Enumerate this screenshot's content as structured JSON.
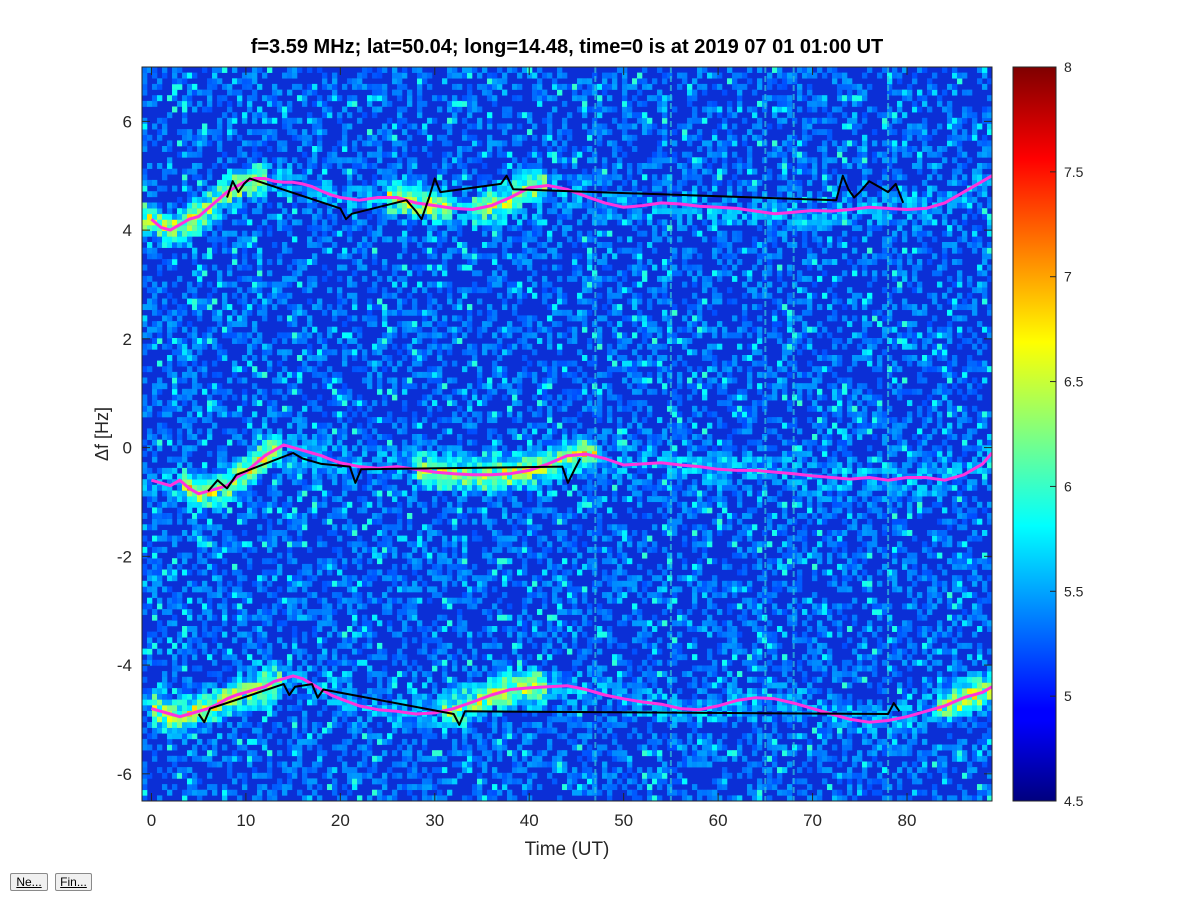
{
  "chart_data": {
    "type": "heatmap",
    "title": "f=3.59 MHz;  lat=50.04; long=14.48, time=0 is at 2019 07 01 01:00 UT",
    "xlabel": "Time (UT)",
    "ylabel": "Δf [Hz]",
    "xlim": [
      -1,
      89
    ],
    "ylim": [
      -6.5,
      7
    ],
    "xticks": [
      0,
      10,
      20,
      30,
      40,
      50,
      60,
      70,
      80
    ],
    "yticks": [
      -6,
      -4,
      -2,
      0,
      2,
      4,
      6
    ],
    "colorbar": {
      "colormap": "jet",
      "limits": [
        4.5,
        8
      ],
      "ticks": [
        "4.5",
        "5",
        "5.5",
        "6",
        "6.5",
        "7",
        "7.5",
        "8"
      ]
    },
    "bands": [
      {
        "center_hz": 4.5,
        "strong_ranges": [
          [
            0,
            10
          ],
          [
            27,
            30
          ],
          [
            36,
            40
          ]
        ]
      },
      {
        "center_hz": -0.4,
        "strong_ranges": [
          [
            5,
            12
          ],
          [
            30,
            45
          ]
        ]
      },
      {
        "center_hz": -4.7,
        "strong_ranges": [
          [
            2,
            12
          ],
          [
            33,
            40
          ],
          [
            85,
            89
          ]
        ]
      }
    ],
    "vertical_artifacts_time": [
      47,
      55,
      65,
      68,
      78
    ],
    "series": [
      {
        "color": "#ff33dd",
        "x": [
          0,
          1,
          2,
          3,
          4,
          5,
          6,
          7,
          8,
          9,
          10,
          11,
          12,
          13,
          14,
          15,
          16,
          17,
          18,
          19,
          20,
          22,
          24,
          26,
          28,
          30,
          32,
          34,
          36,
          38,
          40,
          42,
          44,
          46,
          48,
          50,
          52,
          54,
          56,
          58,
          60,
          62,
          64,
          66,
          68,
          70,
          72,
          74,
          76,
          78,
          80,
          82,
          84,
          86,
          88,
          89
        ],
        "y": [
          4.2,
          4.05,
          4.0,
          4.1,
          4.2,
          4.25,
          4.4,
          4.55,
          4.7,
          4.8,
          4.9,
          4.95,
          4.95,
          4.9,
          4.88,
          4.88,
          4.85,
          4.8,
          4.72,
          4.65,
          4.6,
          4.55,
          4.6,
          4.6,
          4.5,
          4.45,
          4.4,
          4.38,
          4.45,
          4.6,
          4.78,
          4.82,
          4.75,
          4.62,
          4.5,
          4.42,
          4.45,
          4.5,
          4.48,
          4.44,
          4.42,
          4.4,
          4.35,
          4.3,
          4.33,
          4.36,
          4.35,
          4.38,
          4.42,
          4.4,
          4.38,
          4.4,
          4.5,
          4.7,
          4.9,
          5.0
        ]
      },
      {
        "color": "#ff33dd",
        "x": [
          0,
          1,
          2,
          3,
          4,
          5,
          6,
          7,
          8,
          9,
          10,
          11,
          12,
          13,
          14,
          15,
          16,
          17,
          18,
          19,
          20,
          22,
          24,
          26,
          28,
          30,
          32,
          34,
          36,
          38,
          40,
          42,
          44,
          46,
          48,
          50,
          52,
          54,
          56,
          58,
          60,
          62,
          64,
          66,
          68,
          70,
          72,
          74,
          76,
          78,
          80,
          82,
          84,
          86,
          88,
          89
        ],
        "y": [
          -0.6,
          -0.65,
          -0.7,
          -0.6,
          -0.75,
          -0.85,
          -0.8,
          -0.75,
          -0.7,
          -0.55,
          -0.45,
          -0.3,
          -0.15,
          -0.05,
          0.05,
          0.0,
          -0.05,
          -0.1,
          -0.15,
          -0.22,
          -0.28,
          -0.35,
          -0.38,
          -0.35,
          -0.4,
          -0.45,
          -0.48,
          -0.5,
          -0.5,
          -0.48,
          -0.42,
          -0.3,
          -0.15,
          -0.12,
          -0.2,
          -0.32,
          -0.3,
          -0.28,
          -0.32,
          -0.35,
          -0.4,
          -0.42,
          -0.42,
          -0.45,
          -0.48,
          -0.52,
          -0.55,
          -0.58,
          -0.55,
          -0.6,
          -0.55,
          -0.55,
          -0.6,
          -0.5,
          -0.3,
          -0.1
        ]
      },
      {
        "color": "#ff33dd",
        "x": [
          0,
          1,
          2,
          3,
          4,
          5,
          6,
          7,
          8,
          9,
          10,
          11,
          12,
          13,
          14,
          15,
          16,
          17,
          18,
          19,
          20,
          22,
          24,
          26,
          28,
          30,
          32,
          34,
          36,
          38,
          40,
          42,
          44,
          46,
          48,
          50,
          52,
          54,
          56,
          58,
          60,
          62,
          64,
          66,
          68,
          70,
          72,
          74,
          76,
          78,
          80,
          82,
          84,
          86,
          88,
          89
        ],
        "y": [
          -4.8,
          -4.85,
          -4.9,
          -4.95,
          -4.9,
          -4.85,
          -4.8,
          -4.72,
          -4.62,
          -4.55,
          -4.5,
          -4.45,
          -4.4,
          -4.3,
          -4.25,
          -4.2,
          -4.25,
          -4.35,
          -4.45,
          -4.55,
          -4.62,
          -4.75,
          -4.82,
          -4.85,
          -4.9,
          -4.88,
          -4.8,
          -4.68,
          -4.55,
          -4.45,
          -4.42,
          -4.4,
          -4.38,
          -4.45,
          -4.55,
          -4.62,
          -4.68,
          -4.72,
          -4.8,
          -4.82,
          -4.75,
          -4.65,
          -4.6,
          -4.62,
          -4.7,
          -4.8,
          -4.9,
          -5.0,
          -5.05,
          -5.02,
          -4.95,
          -4.85,
          -4.75,
          -4.6,
          -4.5,
          -4.4
        ]
      },
      {
        "color": "#000000",
        "x": [
          8,
          8.6,
          9.2,
          9.8,
          10.4,
          20,
          20.6,
          21.2,
          27,
          28,
          28.6,
          29.4,
          30,
          30.6,
          37,
          37.6,
          38.3,
          72.5,
          73.2,
          73.8,
          74.4,
          75,
          76,
          77,
          78,
          78.8,
          79.6
        ],
        "y": [
          4.6,
          4.9,
          4.7,
          4.85,
          4.95,
          4.4,
          4.2,
          4.3,
          4.55,
          4.35,
          4.2,
          4.6,
          4.95,
          4.7,
          4.85,
          5.0,
          4.75,
          4.55,
          5.0,
          4.75,
          4.6,
          4.7,
          4.9,
          4.8,
          4.7,
          4.85,
          4.5
        ]
      },
      {
        "color": "#000000",
        "x": [
          6,
          7,
          8,
          9,
          15,
          16,
          17,
          18,
          21,
          21.6,
          22.2,
          43.5,
          44.1,
          44.8,
          45.4
        ],
        "y": [
          -0.8,
          -0.6,
          -0.75,
          -0.5,
          -0.1,
          -0.2,
          -0.25,
          -0.3,
          -0.35,
          -0.65,
          -0.4,
          -0.35,
          -0.65,
          -0.4,
          -0.2
        ]
      },
      {
        "color": "#000000",
        "x": [
          5,
          5.6,
          6.2,
          14,
          14.6,
          15.2,
          17,
          17.6,
          18.2,
          32,
          32.6,
          33.2,
          78,
          78.6,
          79.2
        ],
        "y": [
          -4.9,
          -5.05,
          -4.8,
          -4.35,
          -4.55,
          -4.4,
          -4.35,
          -4.6,
          -4.45,
          -4.9,
          -5.1,
          -4.85,
          -4.9,
          -4.7,
          -4.85
        ]
      }
    ]
  },
  "buttons": {
    "ne_label": "Ne...",
    "fin_label": "Fin..."
  }
}
